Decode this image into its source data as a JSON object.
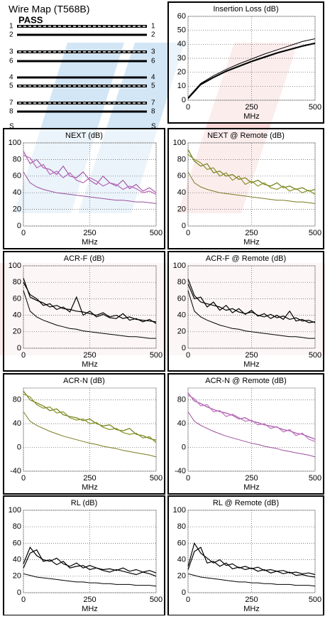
{
  "wire_map": {
    "title": "Wire Map (T568B)",
    "result": "PASS",
    "pins_left": [
      "1",
      "2",
      "3",
      "6",
      "4",
      "5",
      "7",
      "8",
      "S"
    ],
    "pins_right": [
      "1",
      "2",
      "3",
      "6",
      "4",
      "5",
      "7",
      "8",
      "S"
    ]
  },
  "chart_data": [
    {
      "type": "line",
      "title": "Insertion Loss (dB)",
      "x_label": "MHz",
      "x": [
        0,
        50,
        100,
        150,
        200,
        250,
        300,
        350,
        400,
        450,
        500
      ],
      "xlim": [
        0,
        500
      ],
      "xticks": [
        0,
        250,
        500
      ],
      "ylim": [
        0,
        60
      ],
      "yticks": [
        0,
        10,
        20,
        30,
        40,
        50,
        60
      ],
      "grid": true,
      "series": [
        {
          "color": "#000000",
          "values": [
            2,
            12,
            17.5,
            22,
            26,
            29.5,
            33,
            36,
            39,
            42,
            44
          ]
        },
        {
          "color": "#000000",
          "values": [
            1,
            11,
            16,
            20.5,
            24,
            27.5,
            30.5,
            33.5,
            36,
            38.5,
            40.5
          ]
        },
        {
          "color": "#000000",
          "values": [
            1.5,
            11.5,
            16.5,
            21,
            24.5,
            28,
            31,
            34,
            36.5,
            39,
            41
          ]
        }
      ]
    },
    {
      "type": "line",
      "title": "NEXT (dB)",
      "x_label": "MHz",
      "x": [
        0,
        25,
        50,
        75,
        100,
        125,
        150,
        175,
        200,
        225,
        250,
        275,
        300,
        325,
        350,
        375,
        400,
        425,
        450,
        475,
        500
      ],
      "xlim": [
        0,
        500
      ],
      "xticks": [
        0,
        250,
        500
      ],
      "ylim": [
        0,
        100
      ],
      "yticks": [
        0,
        20,
        40,
        60,
        80,
        100
      ],
      "grid": true,
      "series": [
        {
          "color": "#9c4f9c",
          "values": [
            65,
            52,
            47,
            44,
            42,
            40,
            39,
            38,
            37,
            36,
            35,
            34,
            33,
            32,
            31,
            31,
            30,
            29,
            29,
            28,
            27
          ]
        },
        {
          "color": "#a65aa6",
          "values": [
            90,
            75,
            80,
            70,
            68,
            62,
            72,
            60,
            58,
            65,
            55,
            50,
            60,
            52,
            48,
            55,
            45,
            50,
            42,
            46,
            40
          ]
        },
        {
          "color": "#b866b8",
          "values": [
            85,
            82,
            70,
            74,
            62,
            66,
            58,
            64,
            55,
            52,
            58,
            54,
            48,
            52,
            50,
            44,
            48,
            45,
            40,
            42,
            38
          ]
        }
      ]
    },
    {
      "type": "line",
      "title": "NEXT @ Remote (dB)",
      "x_label": "MHz",
      "x": [
        0,
        25,
        50,
        75,
        100,
        125,
        150,
        175,
        200,
        225,
        250,
        275,
        300,
        325,
        350,
        375,
        400,
        425,
        450,
        475,
        500
      ],
      "xlim": [
        0,
        500
      ],
      "xticks": [
        0,
        250,
        500
      ],
      "ylim": [
        0,
        100
      ],
      "yticks": [
        0,
        20,
        40,
        60,
        80,
        100
      ],
      "grid": true,
      "series": [
        {
          "color": "#7a7a20",
          "values": [
            65,
            52,
            47,
            44,
            42,
            40,
            39,
            38,
            37,
            36,
            35,
            34,
            33,
            32,
            31,
            31,
            30,
            29,
            29,
            28,
            27
          ]
        },
        {
          "color": "#6f7d14",
          "values": [
            92,
            78,
            72,
            75,
            64,
            66,
            60,
            62,
            56,
            58,
            52,
            55,
            50,
            48,
            52,
            46,
            48,
            44,
            46,
            42,
            44
          ]
        },
        {
          "color": "#8a9228",
          "values": [
            86,
            80,
            76,
            68,
            70,
            60,
            64,
            55,
            60,
            50,
            54,
            48,
            52,
            46,
            44,
            48,
            42,
            45,
            40,
            43,
            38
          ]
        }
      ]
    },
    {
      "type": "line",
      "title": "ACR-F (dB)",
      "x_label": "MHz",
      "x": [
        0,
        25,
        50,
        75,
        100,
        125,
        150,
        175,
        200,
        225,
        250,
        275,
        300,
        325,
        350,
        375,
        400,
        425,
        450,
        475,
        500
      ],
      "xlim": [
        0,
        500
      ],
      "xticks": [
        0,
        250,
        500
      ],
      "ylim": [
        0,
        100
      ],
      "yticks": [
        0,
        20,
        40,
        60,
        80,
        100
      ],
      "grid": true,
      "series": [
        {
          "color": "#000000",
          "values": [
            70,
            45,
            38,
            34,
            31,
            28,
            26,
            24,
            23,
            21,
            20,
            19,
            18,
            17,
            16,
            15,
            14,
            14,
            13,
            12,
            12
          ]
        },
        {
          "color": "#000000",
          "values": [
            85,
            62,
            58,
            55,
            50,
            52,
            48,
            47,
            45,
            44,
            42,
            40,
            43,
            38,
            40,
            36,
            38,
            35,
            34,
            33,
            32
          ]
        },
        {
          "color": "#000000",
          "values": [
            80,
            65,
            60,
            52,
            54,
            47,
            50,
            44,
            62,
            40,
            45,
            38,
            41,
            37,
            36,
            42,
            34,
            36,
            32,
            35,
            30
          ]
        }
      ]
    },
    {
      "type": "line",
      "title": "ACR-F @ Remote (dB)",
      "x_label": "MHz",
      "x": [
        0,
        25,
        50,
        75,
        100,
        125,
        150,
        175,
        200,
        225,
        250,
        275,
        300,
        325,
        350,
        375,
        400,
        425,
        450,
        475,
        500
      ],
      "xlim": [
        0,
        500
      ],
      "xticks": [
        0,
        250,
        500
      ],
      "ylim": [
        0,
        100
      ],
      "yticks": [
        0,
        20,
        40,
        60,
        80,
        100
      ],
      "grid": true,
      "series": [
        {
          "color": "#000000",
          "values": [
            70,
            45,
            38,
            34,
            31,
            28,
            26,
            24,
            23,
            21,
            20,
            19,
            18,
            17,
            16,
            15,
            14,
            14,
            13,
            12,
            12
          ]
        },
        {
          "color": "#000000",
          "values": [
            84,
            64,
            56,
            54,
            52,
            50,
            46,
            48,
            44,
            42,
            44,
            40,
            38,
            41,
            37,
            39,
            35,
            37,
            33,
            34,
            31
          ]
        },
        {
          "color": "#000000",
          "values": [
            78,
            60,
            62,
            50,
            56,
            46,
            52,
            43,
            48,
            41,
            46,
            39,
            42,
            36,
            40,
            35,
            45,
            33,
            35,
            31,
            32
          ]
        }
      ]
    },
    {
      "type": "line",
      "title": "ACR-N (dB)",
      "x_label": "MHz",
      "x": [
        0,
        25,
        50,
        75,
        100,
        125,
        150,
        175,
        200,
        225,
        250,
        275,
        300,
        325,
        350,
        375,
        400,
        425,
        450,
        475,
        500
      ],
      "xlim": [
        0,
        500
      ],
      "xticks": [
        0,
        250,
        500
      ],
      "ylim": [
        -40,
        100
      ],
      "yticks": [
        -40,
        0,
        40,
        80
      ],
      "grid": true,
      "series": [
        {
          "color": "#7a7a20",
          "values": [
            60,
            44,
            37,
            32,
            27,
            23,
            19,
            16,
            13,
            10,
            7,
            5,
            2,
            0,
            -2,
            -5,
            -7,
            -9,
            -11,
            -13,
            -16
          ]
        },
        {
          "color": "#6f7d14",
          "values": [
            95,
            80,
            75,
            70,
            62,
            65,
            55,
            52,
            50,
            45,
            48,
            40,
            36,
            38,
            30,
            28,
            32,
            22,
            20,
            15,
            12
          ]
        },
        {
          "color": "#8a9228",
          "values": [
            90,
            85,
            72,
            66,
            68,
            58,
            60,
            50,
            46,
            48,
            40,
            42,
            34,
            30,
            32,
            25,
            22,
            24,
            16,
            18,
            8
          ]
        }
      ]
    },
    {
      "type": "line",
      "title": "ACR-N @ Remote (dB)",
      "x_label": "MHz",
      "x": [
        0,
        25,
        50,
        75,
        100,
        125,
        150,
        175,
        200,
        225,
        250,
        275,
        300,
        325,
        350,
        375,
        400,
        425,
        450,
        475,
        500
      ],
      "xlim": [
        0,
        500
      ],
      "xticks": [
        0,
        250,
        500
      ],
      "ylim": [
        -40,
        100
      ],
      "yticks": [
        -40,
        0,
        40,
        80
      ],
      "grid": true,
      "series": [
        {
          "color": "#9c4f9c",
          "values": [
            60,
            44,
            37,
            32,
            27,
            23,
            19,
            16,
            13,
            10,
            7,
            5,
            2,
            0,
            -2,
            -5,
            -7,
            -9,
            -11,
            -13,
            -16
          ]
        },
        {
          "color": "#a65aa6",
          "values": [
            92,
            78,
            74,
            68,
            64,
            60,
            58,
            54,
            48,
            50,
            44,
            42,
            38,
            36,
            34,
            30,
            28,
            24,
            22,
            18,
            14
          ]
        },
        {
          "color": "#c070c0",
          "values": [
            88,
            82,
            70,
            72,
            60,
            62,
            52,
            56,
            50,
            44,
            46,
            38,
            40,
            32,
            35,
            26,
            30,
            20,
            24,
            14,
            10
          ]
        }
      ]
    },
    {
      "type": "line",
      "title": "RL (dB)",
      "x_label": "MHz",
      "x": [
        0,
        25,
        50,
        75,
        100,
        125,
        150,
        175,
        200,
        225,
        250,
        275,
        300,
        325,
        350,
        375,
        400,
        425,
        450,
        475,
        500
      ],
      "xlim": [
        0,
        500
      ],
      "xticks": [
        0,
        250,
        500
      ],
      "ylim": [
        0,
        100
      ],
      "yticks": [
        0,
        20,
        40,
        60,
        80,
        100
      ],
      "grid": true,
      "series": [
        {
          "color": "#000000",
          "values": [
            23,
            21,
            19,
            18,
            17,
            16,
            15,
            14,
            13,
            13,
            12,
            12,
            11,
            11,
            10,
            10,
            10,
            9,
            9,
            9,
            8
          ]
        },
        {
          "color": "#000000",
          "values": [
            35,
            55,
            45,
            40,
            38,
            42,
            35,
            32,
            36,
            30,
            33,
            30,
            28,
            29,
            27,
            30,
            26,
            28,
            25,
            27,
            24
          ]
        },
        {
          "color": "#000000",
          "values": [
            30,
            48,
            52,
            38,
            40,
            34,
            38,
            30,
            32,
            33,
            28,
            30,
            27,
            25,
            28,
            26,
            24,
            22,
            25,
            23,
            20
          ]
        }
      ]
    },
    {
      "type": "line",
      "title": "RL @ Remote (dB)",
      "x_label": "MHz",
      "x": [
        0,
        25,
        50,
        75,
        100,
        125,
        150,
        175,
        200,
        225,
        250,
        275,
        300,
        325,
        350,
        375,
        400,
        425,
        450,
        475,
        500
      ],
      "xlim": [
        0,
        500
      ],
      "xticks": [
        0,
        250,
        500
      ],
      "ylim": [
        0,
        100
      ],
      "yticks": [
        0,
        20,
        40,
        60,
        80,
        100
      ],
      "grid": true,
      "series": [
        {
          "color": "#000000",
          "values": [
            23,
            21,
            19,
            18,
            17,
            16,
            15,
            14,
            13,
            13,
            12,
            12,
            11,
            11,
            10,
            10,
            10,
            9,
            9,
            9,
            8
          ]
        },
        {
          "color": "#000000",
          "values": [
            32,
            60,
            48,
            42,
            36,
            40,
            33,
            35,
            30,
            32,
            29,
            31,
            27,
            28,
            26,
            27,
            24,
            25,
            23,
            24,
            22
          ]
        },
        {
          "color": "#000000",
          "values": [
            28,
            50,
            55,
            36,
            38,
            32,
            36,
            29,
            31,
            28,
            30,
            26,
            28,
            24,
            26,
            23,
            25,
            21,
            22,
            20,
            19
          ]
        }
      ]
    }
  ]
}
